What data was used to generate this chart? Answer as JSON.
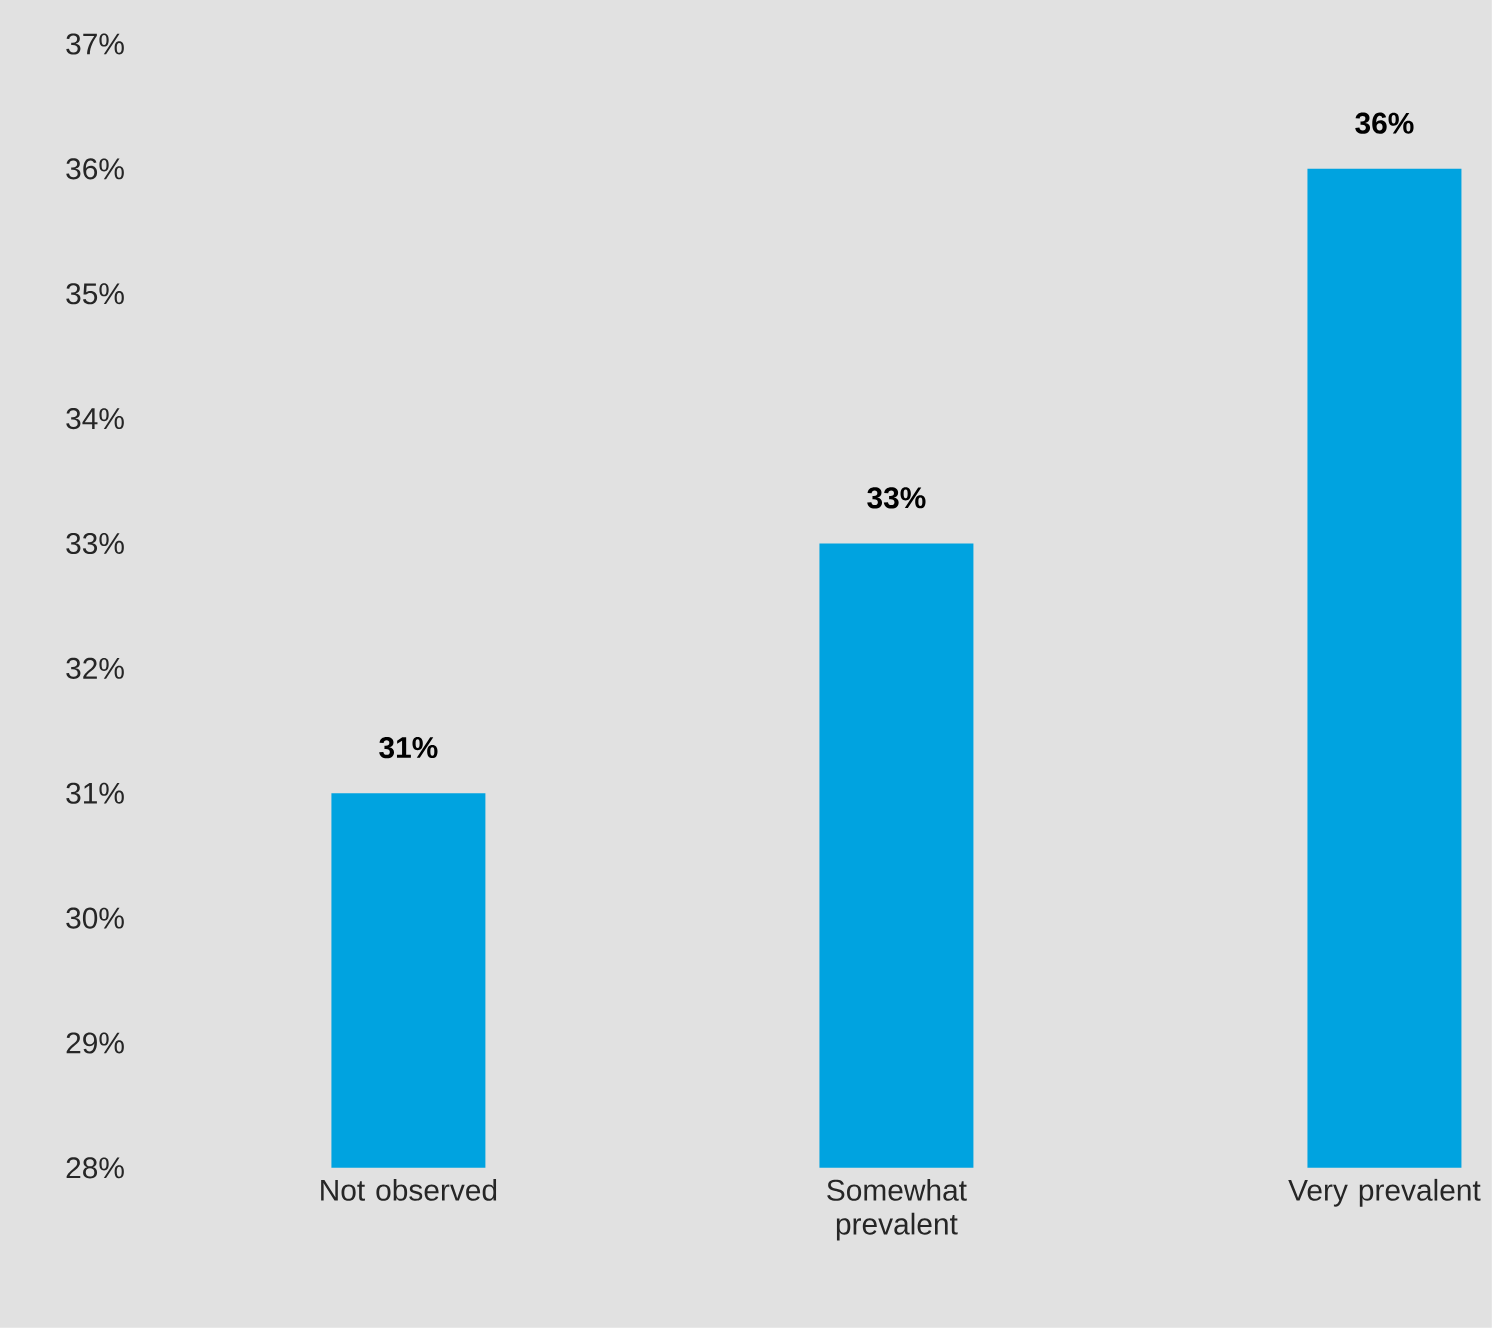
{
  "chart_data": {
    "type": "bar",
    "categories": [
      "Not observed",
      "Somewhat prevalent",
      "Very prevalent"
    ],
    "values": [
      31,
      33,
      36
    ],
    "color": "#00a3e0",
    "value_labels": [
      "31%",
      "33%",
      "36%"
    ],
    "ylim": [
      28,
      37
    ],
    "yticks": [
      {
        "value": 28,
        "label": "28%"
      },
      {
        "value": 29,
        "label": "29%"
      },
      {
        "value": 30,
        "label": "30%"
      },
      {
        "value": 31,
        "label": "31%"
      },
      {
        "value": 32,
        "label": "32%"
      },
      {
        "value": 33,
        "label": "33%"
      },
      {
        "value": 34,
        "label": "34%"
      },
      {
        "value": 35,
        "label": "35%"
      },
      {
        "value": 36,
        "label": "36%"
      },
      {
        "value": 37,
        "label": "37%"
      }
    ],
    "data_labels": false
  }
}
